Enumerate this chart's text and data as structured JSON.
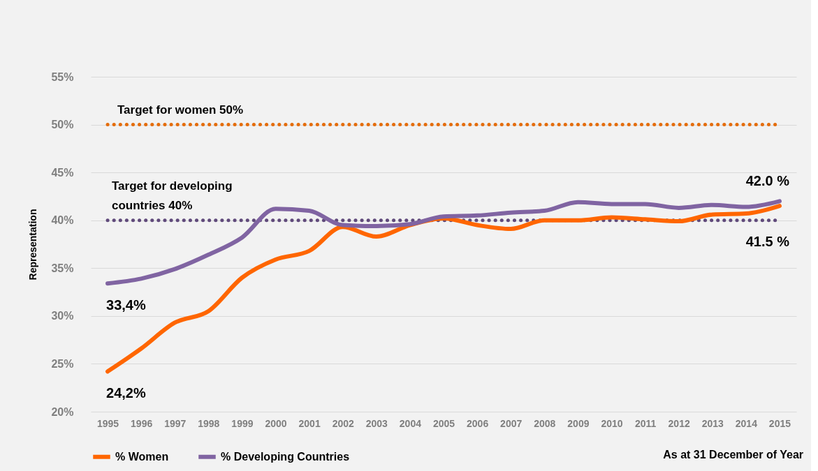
{
  "chart_data": {
    "type": "line",
    "ylabel": "Representation",
    "categories": [
      "1995",
      "1996",
      "1997",
      "1998",
      "1999",
      "2000",
      "2001",
      "2002",
      "2003",
      "2004",
      "2005",
      "2006",
      "2007",
      "2008",
      "2009",
      "2010",
      "2011",
      "2012",
      "2013",
      "2014",
      "2015"
    ],
    "series": [
      {
        "name": "% Women",
        "color": "#ff6600",
        "values": [
          24.2,
          26.6,
          29.3,
          30.5,
          34.0,
          35.9,
          36.8,
          39.3,
          38.3,
          39.5,
          40.2,
          39.5,
          39.1,
          40.0,
          40.0,
          40.3,
          40.1,
          39.9,
          40.6,
          40.7,
          41.5
        ],
        "value_labels": [
          "24,2%",
          null,
          null,
          null,
          null,
          null,
          null,
          null,
          null,
          null,
          null,
          null,
          null,
          null,
          null,
          null,
          null,
          null,
          null,
          null,
          "41.5 %"
        ]
      },
      {
        "name": "% Developing Countries",
        "color": "#8064a2",
        "values": [
          33.4,
          33.9,
          34.9,
          36.4,
          38.2,
          41.2,
          41.0,
          39.5,
          39.4,
          39.6,
          40.4,
          40.5,
          40.8,
          41.0,
          41.9,
          41.7,
          41.7,
          41.3,
          41.6,
          41.4,
          42.0
        ],
        "value_labels": [
          "33,4%",
          null,
          null,
          null,
          null,
          null,
          null,
          null,
          null,
          null,
          null,
          null,
          null,
          null,
          null,
          null,
          null,
          null,
          null,
          null,
          "42.0 %"
        ]
      }
    ],
    "ylim": [
      20,
      55
    ],
    "yticks": [
      {
        "value": 20,
        "label": "20%"
      },
      {
        "value": 25,
        "label": "25%"
      },
      {
        "value": 30,
        "label": "30%"
      },
      {
        "value": 35,
        "label": "35%"
      },
      {
        "value": 40,
        "label": "40%"
      },
      {
        "value": 45,
        "label": "45%"
      },
      {
        "value": 50,
        "label": "50%"
      },
      {
        "value": 55,
        "label": "55%"
      }
    ],
    "ref_lines": [
      {
        "axis": "y",
        "value": 50,
        "label": "Target for women 50%",
        "color": "#e46c0a",
        "line_style": "dotted"
      },
      {
        "axis": "y",
        "value": 40,
        "label": "Target for developing countries 40%",
        "color": "#604a7b",
        "line_style": "dotted"
      }
    ],
    "annotations": [
      "As at 31 December of Year"
    ],
    "grid": "y",
    "legend": "bottom",
    "marker": "none",
    "line_style": "solid"
  }
}
